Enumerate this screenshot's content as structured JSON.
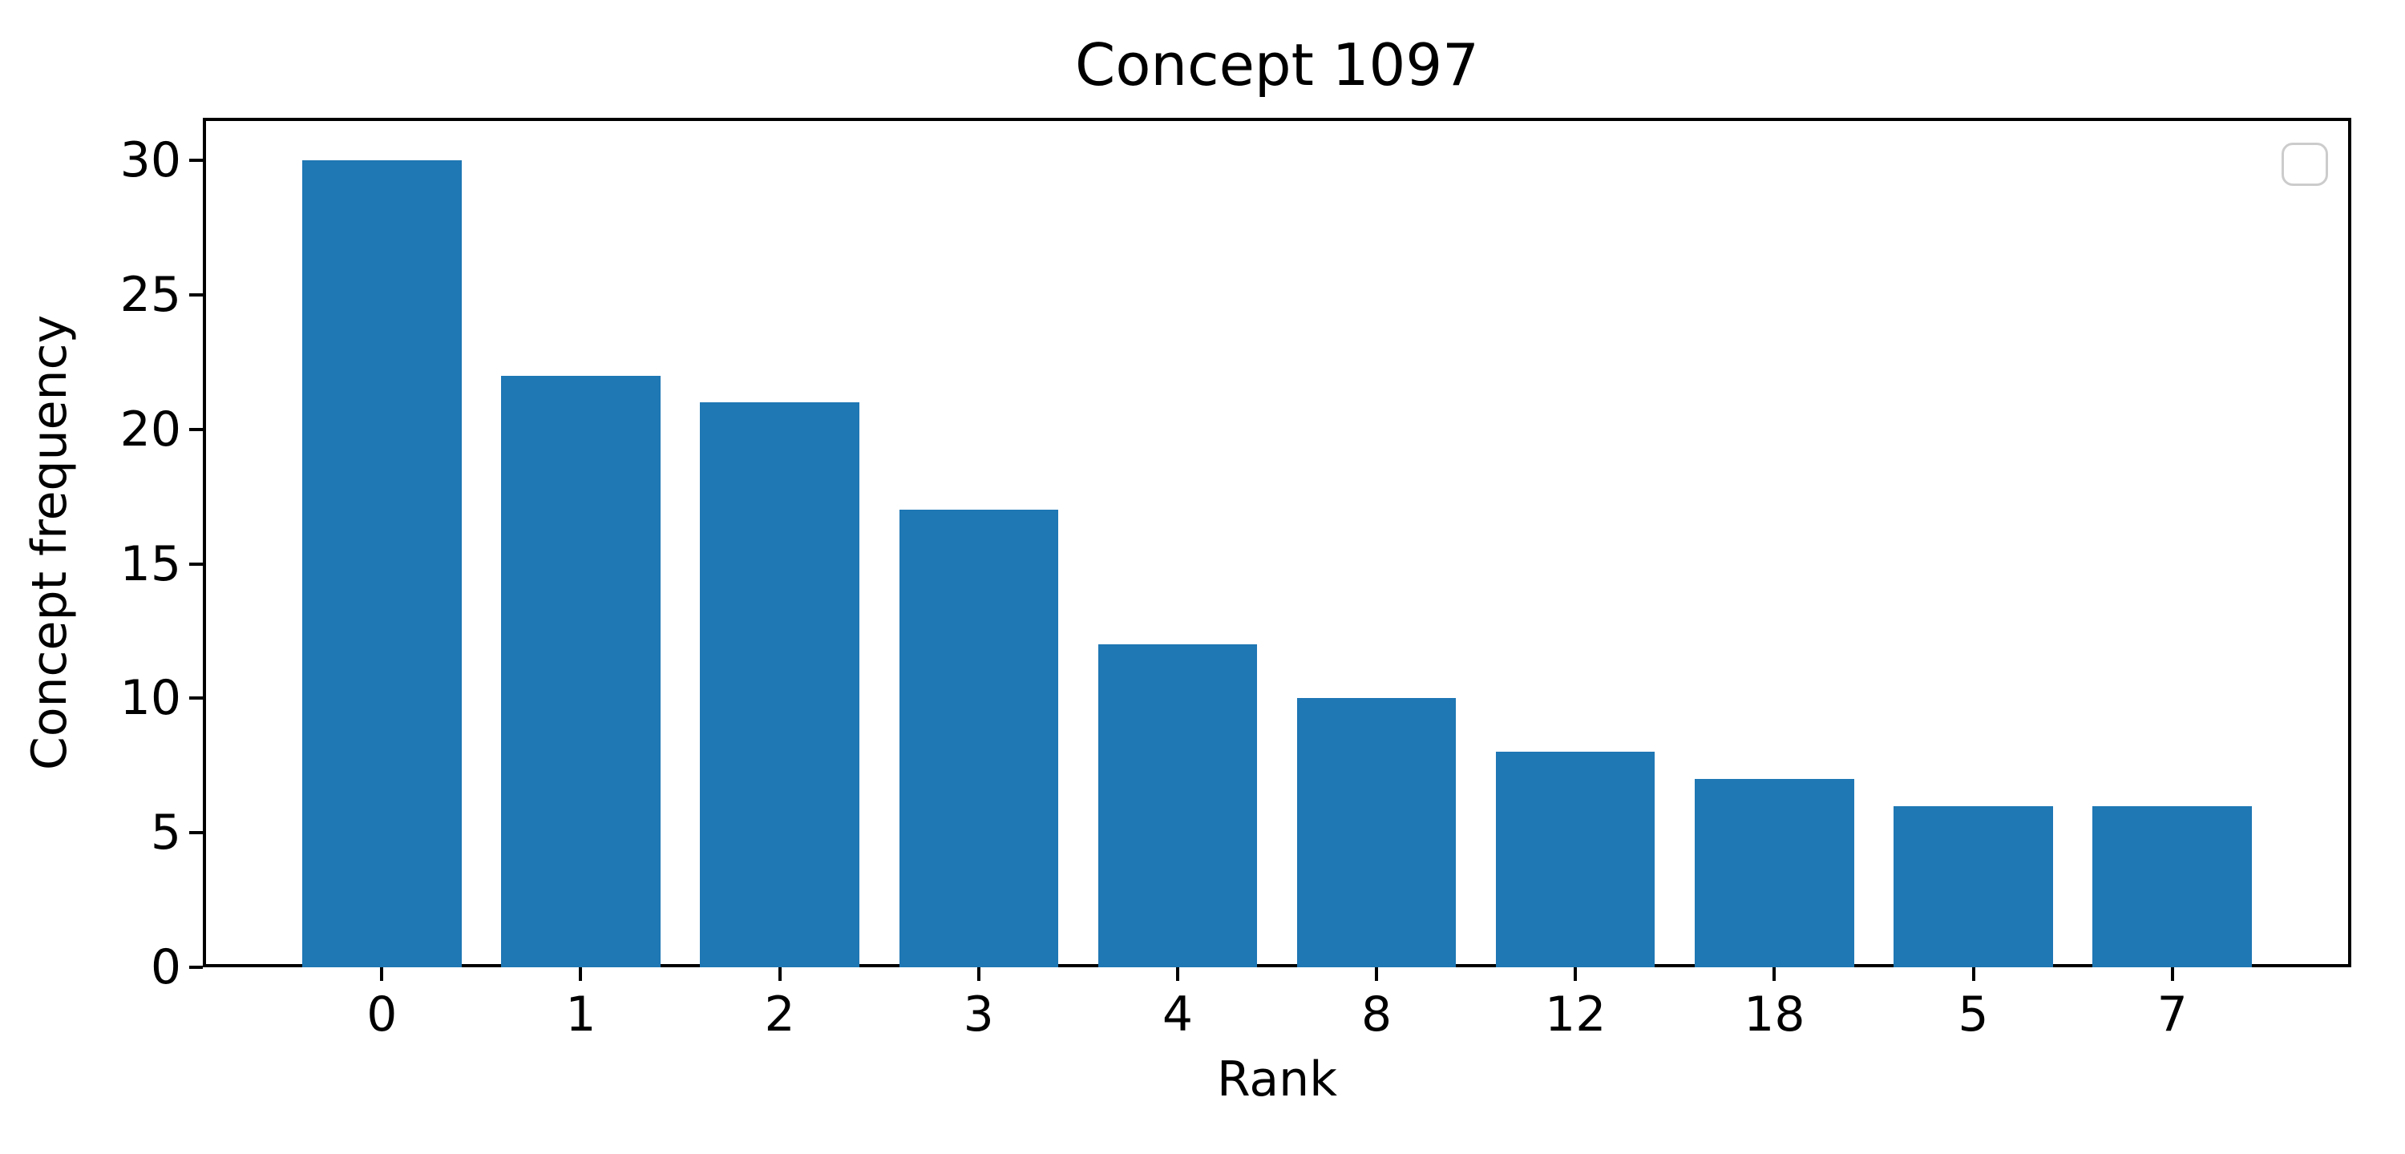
{
  "figure": {
    "background": "#ffffff",
    "text_color": "#000000"
  },
  "chart_data": {
    "type": "bar",
    "title": "Concept 1097",
    "xlabel": "Rank",
    "ylabel": "Concept frequency",
    "categories": [
      "0",
      "1",
      "2",
      "3",
      "4",
      "8",
      "12",
      "18",
      "5",
      "7"
    ],
    "values": [
      30,
      22,
      21,
      17,
      12,
      10,
      8,
      7,
      6,
      6
    ],
    "bar_color": "#1f77b4",
    "yticks": [
      0,
      5,
      10,
      15,
      20,
      25,
      30
    ],
    "ylim": [
      0,
      31.58
    ],
    "xlim": [
      -0.9,
      9.9
    ],
    "bar_width": 0.8,
    "grid": false,
    "legend": {
      "visible": true,
      "entries": [],
      "position": "upper right",
      "edge_color": "#cccccc"
    }
  }
}
